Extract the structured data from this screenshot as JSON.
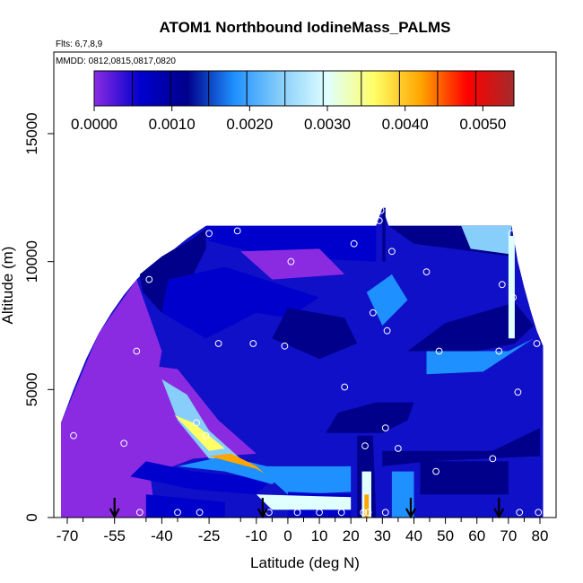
{
  "chart_data": {
    "type": "heatmap",
    "title": "ATOM1 Northbound IodineMass_PALMS",
    "subtitle_flights": "Flts: 6,7,8,9",
    "annotation_mmdd": "MMDD: 0812,0815,0817,0820",
    "xlabel": "Latitude (deg N)",
    "ylabel": "Altitude (m)",
    "xlim": [
      -70,
      80
    ],
    "ylim": [
      0,
      17500
    ],
    "x_ticks": [
      -70,
      -55,
      -40,
      -25,
      -10,
      0,
      10,
      20,
      30,
      40,
      50,
      60,
      70,
      80
    ],
    "x_tick_labels": [
      "-70",
      "-55",
      "-40",
      "-25",
      "-10",
      "0",
      "10",
      "20",
      "30",
      "40",
      "50",
      "60",
      "70",
      "80"
    ],
    "y_ticks": [
      0,
      5000,
      10000,
      15000
    ],
    "y_tick_labels": [
      "0",
      "5000",
      "10000",
      "15000"
    ],
    "colorbar": {
      "range": [
        0,
        0.0054
      ],
      "ticks": [
        0.0,
        0.001,
        0.002,
        0.003,
        0.004,
        0.005
      ],
      "tick_labels": [
        "0.0000",
        "0.0010",
        "0.0020",
        "0.0030",
        "0.0040",
        "0.0050"
      ],
      "colors": [
        "#8a2be2",
        "#0000cd",
        "#00008b",
        "#1e90ff",
        "#87cefa",
        "#e0ffff",
        "#ffff66",
        "#ffa500",
        "#ff0000",
        "#a52a2a"
      ]
    },
    "sample_points": [
      [
        -68,
        3200
      ],
      [
        -55,
        8700
      ],
      [
        -52,
        2900
      ],
      [
        -48,
        6500
      ],
      [
        -47,
        200
      ],
      [
        -44,
        9300
      ],
      [
        -35,
        200
      ],
      [
        -29,
        3700
      ],
      [
        -28,
        200
      ],
      [
        -26,
        3200
      ],
      [
        -25,
        11100
      ],
      [
        -22,
        6800
      ],
      [
        -16,
        11200
      ],
      [
        -11,
        6800
      ],
      [
        -6,
        200
      ],
      [
        -1,
        6700
      ],
      [
        1,
        10000
      ],
      [
        3,
        200
      ],
      [
        10,
        200
      ],
      [
        17,
        200
      ],
      [
        18,
        5100
      ],
      [
        21,
        10700
      ],
      [
        24,
        200
      ],
      [
        24.5,
        2800
      ],
      [
        25.5,
        200
      ],
      [
        27,
        8000
      ],
      [
        29,
        11600
      ],
      [
        29.5,
        12000
      ],
      [
        31,
        200
      ],
      [
        31,
        3500
      ],
      [
        31.5,
        7300
      ],
      [
        33,
        10400
      ],
      [
        35,
        2700
      ],
      [
        44,
        9600
      ],
      [
        47,
        1800
      ],
      [
        48,
        6500
      ],
      [
        65,
        2300
      ],
      [
        67,
        6500
      ],
      [
        68,
        9100
      ],
      [
        71,
        11100
      ],
      [
        71.5,
        8600
      ],
      [
        73,
        4900
      ],
      [
        73.5,
        200
      ],
      [
        79,
        6800
      ],
      [
        79.5,
        200
      ]
    ],
    "arrows_lat": [
      -55,
      -8,
      39,
      67
    ],
    "envelope_top": [
      [
        -72,
        3700
      ],
      [
        -68,
        5000
      ],
      [
        -64,
        6200
      ],
      [
        -60,
        7200
      ],
      [
        -56,
        8000
      ],
      [
        -52,
        8700
      ],
      [
        -48,
        9300
      ],
      [
        -44,
        9800
      ],
      [
        -40,
        10200
      ],
      [
        -36,
        10500
      ],
      [
        -32,
        10900
      ],
      [
        -26,
        11400
      ],
      [
        28,
        11400
      ],
      [
        30,
        12100
      ],
      [
        32,
        11400
      ],
      [
        71,
        11400
      ],
      [
        73,
        10000
      ],
      [
        75,
        9000
      ],
      [
        77,
        8100
      ],
      [
        79,
        7300
      ],
      [
        81,
        6700
      ]
    ],
    "envelope_bottom_lat": [
      -72,
      81
    ],
    "regions": [
      {
        "poly": [
          [
            -72,
            0
          ],
          [
            -72,
            3700
          ],
          [
            -60,
            7200
          ],
          [
            -48,
            9300
          ],
          [
            -40,
            6500
          ],
          [
            -45,
            3000
          ],
          [
            -42,
            0
          ]
        ],
        "value": 0.0002
      },
      {
        "poly": [
          [
            -47,
            9500
          ],
          [
            -40,
            10200
          ],
          [
            -30,
            10900
          ],
          [
            -26,
            11300
          ],
          [
            -26,
            10500
          ],
          [
            -32,
            9000
          ],
          [
            -40,
            8000
          ],
          [
            -46,
            8800
          ]
        ],
        "value": 0.0016
      },
      {
        "poly": [
          [
            -26,
            11400
          ],
          [
            28,
            11400
          ],
          [
            28,
            10000
          ],
          [
            -5,
            10200
          ],
          [
            -25,
            10800
          ]
        ],
        "value": 0.0008
      },
      {
        "poly": [
          [
            -15,
            10400
          ],
          [
            10,
            10500
          ],
          [
            18,
            9500
          ],
          [
            -5,
            9300
          ]
        ],
        "value": 0.0003
      },
      {
        "poly": [
          [
            32,
            11400
          ],
          [
            71,
            11400
          ],
          [
            71,
            10200
          ],
          [
            40,
            10700
          ]
        ],
        "value": 0.0014
      },
      {
        "poly": [
          [
            55,
            11400
          ],
          [
            71,
            11400
          ],
          [
            70,
            10300
          ],
          [
            58,
            10500
          ]
        ],
        "value": 0.0022
      },
      {
        "poly": [
          [
            -40,
            8000
          ],
          [
            -26,
            7000
          ],
          [
            -10,
            8000
          ],
          [
            0,
            7800
          ],
          [
            10,
            8600
          ],
          [
            -20,
            9800
          ],
          [
            -38,
            9300
          ]
        ],
        "value": 0.0006
      },
      {
        "poly": [
          [
            -5,
            7000
          ],
          [
            10,
            6200
          ],
          [
            22,
            6800
          ],
          [
            18,
            7800
          ],
          [
            0,
            8200
          ]
        ],
        "value": 0.0015
      },
      {
        "poly": [
          [
            25,
            8800
          ],
          [
            33,
            9500
          ],
          [
            38,
            8500
          ],
          [
            30,
            7500
          ]
        ],
        "value": 0.0018
      },
      {
        "poly": [
          [
            38,
            6500
          ],
          [
            60,
            6500
          ],
          [
            72,
            6800
          ],
          [
            78,
            7500
          ],
          [
            72,
            8400
          ],
          [
            50,
            7600
          ]
        ],
        "value": 0.0013
      },
      {
        "poly": [
          [
            44,
            6500
          ],
          [
            70,
            6500
          ],
          [
            78,
            7000
          ],
          [
            62,
            5700
          ],
          [
            44,
            5600
          ]
        ],
        "value": 0.0021
      },
      {
        "poly": [
          [
            -60,
            2600
          ],
          [
            -48,
            6000
          ],
          [
            -35,
            5800
          ],
          [
            -22,
            3800
          ],
          [
            -10,
            2500
          ],
          [
            -30,
            2300
          ],
          [
            -45,
            1600
          ]
        ],
        "value": 0.0005
      },
      {
        "poly": [
          [
            -40,
            5400
          ],
          [
            -32,
            4800
          ],
          [
            -25,
            3400
          ],
          [
            -15,
            2300
          ],
          [
            -25,
            2300
          ],
          [
            -35,
            3800
          ]
        ],
        "value": 0.0023
      },
      {
        "poly": [
          [
            -36,
            4000
          ],
          [
            -30,
            3700
          ],
          [
            -20,
            2700
          ],
          [
            -25,
            2600
          ],
          [
            -32,
            3500
          ]
        ],
        "value": 0.0036
      },
      {
        "poly": [
          [
            -50,
            1600
          ],
          [
            -30,
            1100
          ],
          [
            -10,
            900
          ],
          [
            -5,
            1500
          ],
          [
            -30,
            1800
          ],
          [
            -45,
            2200
          ]
        ],
        "value": 0.001
      },
      {
        "poly": [
          [
            -35,
            2000
          ],
          [
            -20,
            1800
          ],
          [
            -5,
            1300
          ],
          [
            0,
            1800
          ],
          [
            -20,
            2400
          ]
        ],
        "value": 0.002
      },
      {
        "poly": [
          [
            -25,
            2400
          ],
          [
            -10,
            1900
          ],
          [
            0,
            1200
          ],
          [
            -5,
            1700
          ],
          [
            -18,
            2500
          ]
        ],
        "value": 0.0038
      },
      {
        "poly": [
          [
            -10,
            2000
          ],
          [
            20,
            2000
          ],
          [
            20,
            1000
          ],
          [
            0,
            900
          ]
        ],
        "value": 0.002
      },
      {
        "poly": [
          [
            0,
            1000
          ],
          [
            20,
            900
          ],
          [
            20,
            0
          ],
          [
            0,
            0
          ]
        ],
        "value": 0.0007
      },
      {
        "poly": [
          [
            -10,
            900
          ],
          [
            20,
            800
          ],
          [
            20,
            300
          ],
          [
            -5,
            300
          ]
        ],
        "value": 0.0031
      },
      {
        "poly": [
          [
            -45,
            900
          ],
          [
            -20,
            600
          ],
          [
            -20,
            0
          ],
          [
            -45,
            0
          ]
        ],
        "value": 0.0006
      },
      {
        "poly": [
          [
            22,
            3200
          ],
          [
            27,
            3200
          ],
          [
            28,
            0
          ],
          [
            22,
            0
          ]
        ],
        "value": 0.0015
      },
      {
        "poly": [
          [
            23.5,
            1800
          ],
          [
            26.5,
            1800
          ],
          [
            26.5,
            0
          ],
          [
            23.5,
            0
          ]
        ],
        "value": 0.0028
      },
      {
        "poly": [
          [
            24.3,
            900
          ],
          [
            25.7,
            900
          ],
          [
            25.7,
            0
          ],
          [
            24.3,
            0
          ]
        ],
        "value": 0.004
      },
      {
        "poly": [
          [
            12,
            3300
          ],
          [
            30,
            3300
          ],
          [
            38,
            3800
          ],
          [
            40,
            4500
          ],
          [
            28,
            4500
          ],
          [
            16,
            4100
          ]
        ],
        "value": 0.0013
      },
      {
        "poly": [
          [
            30,
            2600
          ],
          [
            65,
            2600
          ],
          [
            80,
            3500
          ],
          [
            80,
            2400
          ],
          [
            45,
            2200
          ],
          [
            30,
            2000
          ]
        ],
        "value": 0.0014
      },
      {
        "poly": [
          [
            33,
            1800
          ],
          [
            40,
            1800
          ],
          [
            40,
            0
          ],
          [
            33,
            0
          ]
        ],
        "value": 0.0018
      },
      {
        "poly": [
          [
            42,
            2200
          ],
          [
            70,
            2200
          ],
          [
            70,
            900
          ],
          [
            42,
            900
          ]
        ],
        "value": 0.0014
      },
      {
        "poly": [
          [
            70,
            11000
          ],
          [
            72,
            11000
          ],
          [
            72,
            7000
          ],
          [
            70,
            7000
          ]
        ],
        "value": 0.0028
      },
      {
        "poly": [
          [
            30,
            12100
          ],
          [
            31,
            12100
          ],
          [
            31,
            10000
          ],
          [
            30,
            10000
          ]
        ],
        "value": 0.0016
      }
    ]
  }
}
